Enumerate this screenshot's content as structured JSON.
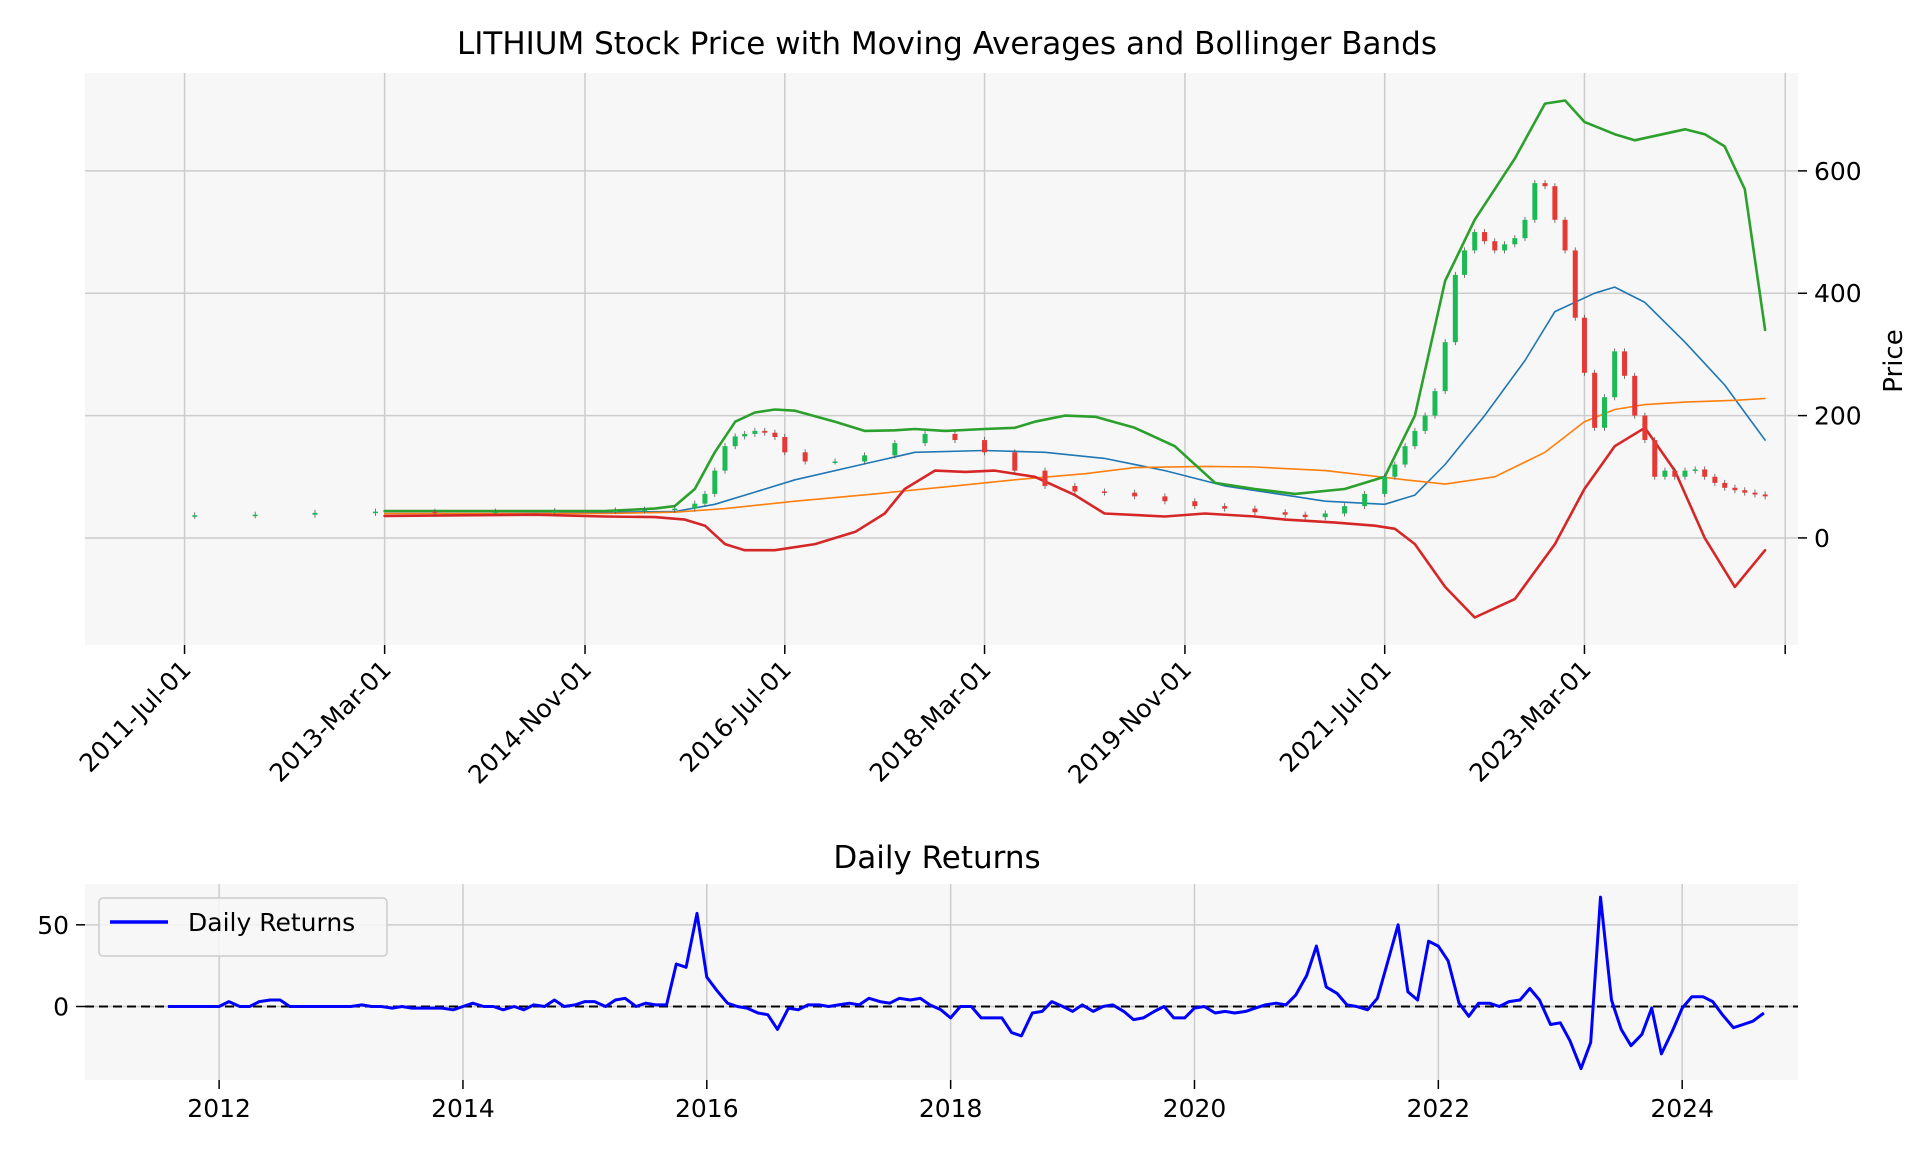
{
  "chart_data": [
    {
      "type": "line",
      "subtype": "candlestick-with-indicators",
      "title": "LITHIUM Stock Price with Moving Averages and Bollinger Bands",
      "xlabel": "",
      "ylabel": "Price",
      "ylim": [
        -175,
        760
      ],
      "yticks": [
        0,
        200,
        400,
        600
      ],
      "ytick_labels": [
        "0",
        "200",
        "400",
        "600"
      ],
      "yaxis_side": "right",
      "xlim": [
        "2010-09-01",
        "2024-12-10"
      ],
      "xticks": [
        "2011-07-01",
        "2013-03-01",
        "2014-11-01",
        "2016-07-01",
        "2018-03-01",
        "2019-11-01",
        "2021-07-01",
        "2023-03-01",
        "2024-11-01"
      ],
      "xtick_labels": [
        "2011-Jul-01",
        "2013-Mar-01",
        "2014-Nov-01",
        "2016-Jul-01",
        "2018-Mar-01",
        "2019-Nov-01",
        "2021-Jul-01",
        "2023-Mar-01",
        ""
      ],
      "grid": true,
      "colors": {
        "up": "#1db954",
        "down": "#e53935",
        "ma_short": "#1f77b4",
        "ma_long": "#ff7f0e",
        "upper_band": "#2ca02c",
        "lower_band": "#d62728"
      },
      "series": [
        {
          "style": "candles",
          "color_up": "#1db954",
          "color_down": "#e53935",
          "x": [
            "2011-08-01",
            "2012-02-01",
            "2012-08-01",
            "2013-02-01",
            "2013-08-01",
            "2014-02-01",
            "2014-08-01",
            "2015-02-01",
            "2015-05-01",
            "2015-08-01",
            "2015-10-01",
            "2015-11-01",
            "2015-12-01",
            "2016-01-01",
            "2016-02-01",
            "2016-03-01",
            "2016-04-01",
            "2016-05-01",
            "2016-06-01",
            "2016-07-01",
            "2016-09-01",
            "2016-12-01",
            "2017-03-01",
            "2017-06-01",
            "2017-09-01",
            "2017-12-01",
            "2018-03-01",
            "2018-06-01",
            "2018-09-01",
            "2018-12-01",
            "2019-03-01",
            "2019-06-01",
            "2019-09-01",
            "2019-12-01",
            "2020-03-01",
            "2020-06-01",
            "2020-09-01",
            "2020-11-01",
            "2021-01-01",
            "2021-03-01",
            "2021-05-01",
            "2021-07-01",
            "2021-08-01",
            "2021-09-01",
            "2021-10-01",
            "2021-11-01",
            "2021-12-01",
            "2022-01-01",
            "2022-02-01",
            "2022-03-01",
            "2022-04-01",
            "2022-05-01",
            "2022-06-01",
            "2022-07-01",
            "2022-08-01",
            "2022-09-01",
            "2022-10-01",
            "2022-11-01",
            "2022-12-01",
            "2023-01-01",
            "2023-02-01",
            "2023-03-01",
            "2023-04-01",
            "2023-05-01",
            "2023-06-01",
            "2023-07-01",
            "2023-08-01",
            "2023-09-01",
            "2023-10-01",
            "2023-11-01",
            "2023-12-01",
            "2024-01-01",
            "2024-02-01",
            "2024-03-01",
            "2024-04-01",
            "2024-05-01",
            "2024-06-01",
            "2024-07-01",
            "2024-08-01",
            "2024-09-01"
          ],
          "open": [
            36,
            37,
            38,
            41,
            43,
            42,
            43,
            44,
            45,
            46,
            48,
            56,
            72,
            110,
            150,
            166,
            170,
            175,
            172,
            165,
            140,
            125,
            125,
            135,
            155,
            170,
            160,
            140,
            110,
            85,
            76,
            74,
            68,
            60,
            52,
            48,
            42,
            38,
            34,
            40,
            52,
            72,
            100,
            120,
            150,
            175,
            200,
            240,
            320,
            430,
            470,
            500,
            485,
            470,
            480,
            490,
            520,
            580,
            575,
            520,
            470,
            360,
            270,
            180,
            230,
            305,
            265,
            200,
            160,
            100,
            110,
            100,
            110,
            112,
            100,
            90,
            82,
            78,
            74,
            71
          ],
          "close": [
            37,
            38,
            41,
            43,
            42,
            43,
            44,
            45,
            46,
            48,
            56,
            72,
            110,
            150,
            166,
            170,
            175,
            172,
            165,
            140,
            125,
            125,
            135,
            155,
            170,
            160,
            140,
            110,
            85,
            76,
            74,
            68,
            60,
            52,
            48,
            42,
            38,
            34,
            40,
            52,
            72,
            100,
            120,
            150,
            175,
            200,
            240,
            320,
            430,
            470,
            500,
            485,
            470,
            480,
            490,
            520,
            580,
            575,
            520,
            470,
            360,
            270,
            180,
            230,
            305,
            265,
            200,
            160,
            100,
            110,
            100,
            110,
            112,
            100,
            90,
            82,
            78,
            74,
            71,
            68
          ]
        },
        {
          "name": "",
          "style": "line",
          "color": "#1f77b4",
          "x": [
            "2013-03-01",
            "2014-01-01",
            "2015-01-01",
            "2015-08-01",
            "2015-12-01",
            "2016-04-01",
            "2016-08-01",
            "2017-04-01",
            "2017-08-01",
            "2018-03-01",
            "2018-09-01",
            "2019-03-01",
            "2019-09-01",
            "2020-03-01",
            "2020-09-01",
            "2021-01-01",
            "2021-07-01",
            "2021-10-01",
            "2022-01-01",
            "2022-05-01",
            "2022-09-01",
            "2022-12-01",
            "2023-04-01",
            "2023-06-01",
            "2023-09-01",
            "2024-01-01",
            "2024-05-01",
            "2024-09-01"
          ],
          "y": [
            43,
            43,
            42,
            43,
            55,
            75,
            95,
            125,
            140,
            143,
            140,
            130,
            110,
            85,
            70,
            60,
            55,
            70,
            120,
            200,
            290,
            370,
            400,
            410,
            385,
            320,
            250,
            160
          ]
        },
        {
          "name": "",
          "style": "line",
          "color": "#ff7f0e",
          "x": [
            "2013-03-01",
            "2014-01-01",
            "2015-01-01",
            "2015-08-01",
            "2016-01-01",
            "2016-08-01",
            "2017-04-01",
            "2017-12-01",
            "2018-06-01",
            "2019-01-01",
            "2019-06-01",
            "2020-01-01",
            "2020-06-01",
            "2021-01-01",
            "2021-09-01",
            "2022-01-01",
            "2022-06-01",
            "2022-11-01",
            "2023-03-01",
            "2023-06-01",
            "2023-09-01",
            "2024-01-01",
            "2024-06-01",
            "2024-09-01"
          ],
          "y": [
            40,
            40,
            40,
            42,
            48,
            60,
            72,
            85,
            95,
            105,
            115,
            117,
            116,
            110,
            95,
            88,
            100,
            140,
            190,
            210,
            218,
            222,
            225,
            228
          ]
        },
        {
          "name": "",
          "style": "line",
          "color": "#2ca02c",
          "x": [
            "2013-03-01",
            "2014-06-01",
            "2015-01-01",
            "2015-06-01",
            "2015-08-01",
            "2015-10-01",
            "2015-12-01",
            "2016-02-01",
            "2016-04-01",
            "2016-06-01",
            "2016-08-01",
            "2016-12-01",
            "2017-03-01",
            "2017-06-01",
            "2017-08-01",
            "2017-11-01",
            "2018-03-01",
            "2018-06-01",
            "2018-08-01",
            "2018-11-01",
            "2019-02-01",
            "2019-06-01",
            "2019-10-01",
            "2020-02-01",
            "2020-06-01",
            "2020-10-01",
            "2021-03-01",
            "2021-07-01",
            "2021-10-01",
            "2022-01-01",
            "2022-04-01",
            "2022-08-01",
            "2022-11-01",
            "2023-01-01",
            "2023-03-01",
            "2023-06-01",
            "2023-08-01",
            "2024-01-01",
            "2024-03-01",
            "2024-05-01",
            "2024-07-01",
            "2024-09-01"
          ],
          "y": [
            44,
            44,
            44,
            48,
            52,
            80,
            140,
            190,
            205,
            210,
            208,
            190,
            175,
            176,
            178,
            175,
            178,
            180,
            190,
            200,
            198,
            180,
            150,
            90,
            80,
            72,
            80,
            100,
            200,
            420,
            520,
            620,
            710,
            715,
            680,
            660,
            650,
            668,
            660,
            640,
            570,
            340
          ]
        },
        {
          "name": "",
          "style": "line",
          "color": "#d62728",
          "x": [
            "2013-03-01",
            "2014-06-01",
            "2015-01-01",
            "2015-06-01",
            "2015-09-01",
            "2015-11-01",
            "2016-01-01",
            "2016-03-01",
            "2016-06-01",
            "2016-10-01",
            "2017-02-01",
            "2017-05-01",
            "2017-07-01",
            "2017-10-01",
            "2018-01-01",
            "2018-04-01",
            "2018-08-01",
            "2018-12-01",
            "2019-03-01",
            "2019-09-01",
            "2020-01-01",
            "2020-06-01",
            "2020-09-01",
            "2021-02-01",
            "2021-06-01",
            "2021-08-01",
            "2021-10-01",
            "2022-01-01",
            "2022-04-01",
            "2022-08-01",
            "2022-12-01",
            "2023-03-01",
            "2023-06-01",
            "2023-09-01",
            "2023-12-01",
            "2024-03-01",
            "2024-06-01",
            "2024-09-01"
          ],
          "y": [
            36,
            38,
            35,
            34,
            30,
            20,
            -10,
            -20,
            -20,
            -10,
            10,
            40,
            80,
            110,
            108,
            110,
            100,
            70,
            40,
            35,
            40,
            35,
            30,
            25,
            20,
            15,
            -10,
            -80,
            -130,
            -100,
            -10,
            80,
            150,
            180,
            110,
            0,
            -80,
            -20
          ]
        }
      ]
    },
    {
      "type": "line",
      "title": "Daily Returns",
      "xlabel": "",
      "ylabel": "",
      "ylim": [
        -45,
        75
      ],
      "yticks": [
        0,
        50
      ],
      "ytick_labels": [
        "0",
        "50"
      ],
      "xlim": [
        2010.9,
        2024.95
      ],
      "xticks": [
        2012,
        2014,
        2016,
        2018,
        2020,
        2022,
        2024
      ],
      "xtick_labels": [
        "2012",
        "2014",
        "2016",
        "2018",
        "2020",
        "2022",
        "2024"
      ],
      "grid": true,
      "legend": {
        "placement": "top-left",
        "entries": [
          "Daily Returns"
        ]
      },
      "zero_line": {
        "y": 0,
        "style": "dashed",
        "color": "#000000"
      },
      "series": [
        {
          "name": "Daily Returns",
          "color": "#0000ff",
          "x": [
            2011.58,
            2011.75,
            2011.92,
            2012.0,
            2012.08,
            2012.17,
            2012.25,
            2012.33,
            2012.42,
            2012.5,
            2012.58,
            2012.67,
            2012.75,
            2012.83,
            2012.92,
            2013.0,
            2013.08,
            2013.17,
            2013.25,
            2013.33,
            2013.42,
            2013.5,
            2013.58,
            2013.67,
            2013.75,
            2013.83,
            2013.92,
            2014.0,
            2014.08,
            2014.17,
            2014.25,
            2014.33,
            2014.42,
            2014.5,
            2014.58,
            2014.67,
            2014.75,
            2014.83,
            2014.92,
            2015.0,
            2015.08,
            2015.17,
            2015.25,
            2015.33,
            2015.42,
            2015.5,
            2015.58,
            2015.67,
            2015.75,
            2015.83,
            2015.92,
            2016.0,
            2016.08,
            2016.17,
            2016.25,
            2016.33,
            2016.42,
            2016.5,
            2016.58,
            2016.67,
            2016.75,
            2016.83,
            2016.92,
            2017.0,
            2017.08,
            2017.17,
            2017.25,
            2017.33,
            2017.42,
            2017.5,
            2017.58,
            2017.67,
            2017.75,
            2017.83,
            2017.92,
            2018.0,
            2018.08,
            2018.17,
            2018.25,
            2018.33,
            2018.42,
            2018.5,
            2018.58,
            2018.67,
            2018.75,
            2018.83,
            2018.92,
            2019.0,
            2019.08,
            2019.17,
            2019.25,
            2019.33,
            2019.42,
            2019.5,
            2019.58,
            2019.67,
            2019.75,
            2019.83,
            2019.92,
            2020.0,
            2020.08,
            2020.17,
            2020.25,
            2020.33,
            2020.42,
            2020.5,
            2020.58,
            2020.67,
            2020.75,
            2020.83,
            2020.92,
            2021.0,
            2021.08,
            2021.17,
            2021.25,
            2021.33,
            2021.42,
            2021.5,
            2021.58,
            2021.67,
            2021.75,
            2021.83,
            2021.92,
            2022.0,
            2022.08,
            2022.17,
            2022.25,
            2022.33,
            2022.42,
            2022.5,
            2022.58,
            2022.67,
            2022.75,
            2022.83,
            2022.92,
            2023.0,
            2023.08,
            2023.17,
            2023.25,
            2023.33,
            2023.42,
            2023.5,
            2023.58,
            2023.67,
            2023.75,
            2023.83,
            2023.92,
            2024.0,
            2024.08,
            2024.17,
            2024.25,
            2024.33,
            2024.42,
            2024.5,
            2024.58,
            2024.67
          ],
          "y": [
            0,
            0,
            0,
            0,
            3,
            0,
            0,
            3,
            4,
            4,
            0,
            0,
            0,
            0,
            0,
            0,
            0,
            1,
            0,
            0,
            -1,
            0,
            -1,
            -1,
            -1,
            -1,
            -2,
            0,
            2,
            0,
            0,
            -2,
            0,
            -2,
            1,
            0,
            4,
            0,
            1,
            3,
            3,
            0,
            4,
            5,
            0,
            2,
            1,
            1,
            26,
            24,
            57,
            18,
            10,
            2,
            0,
            -1,
            -4,
            -5,
            -14,
            -1,
            -2,
            1,
            1,
            0,
            1,
            2,
            1,
            5,
            3,
            2,
            5,
            4,
            5,
            1,
            -2,
            -7,
            0,
            0,
            -7,
            -7,
            -7,
            -16,
            -18,
            -4,
            -3,
            3,
            0,
            -3,
            1,
            -3,
            0,
            1,
            -3,
            -8,
            -7,
            -3,
            0,
            -7,
            -7,
            -1,
            0,
            -4,
            -3,
            -4,
            -3,
            -1,
            1,
            2,
            1,
            7,
            19,
            37,
            12,
            8,
            1,
            0,
            -2,
            5,
            26,
            50,
            9,
            4,
            40,
            37,
            28,
            2,
            -6,
            2,
            2,
            0,
            3,
            4,
            11,
            4,
            -11,
            -10,
            -21,
            -38,
            -22,
            67,
            4,
            -14,
            -24,
            -17,
            -1,
            -29,
            -15,
            -1,
            6,
            6,
            3,
            -5,
            -13,
            -11,
            -9,
            -4
          ]
        }
      ]
    }
  ]
}
